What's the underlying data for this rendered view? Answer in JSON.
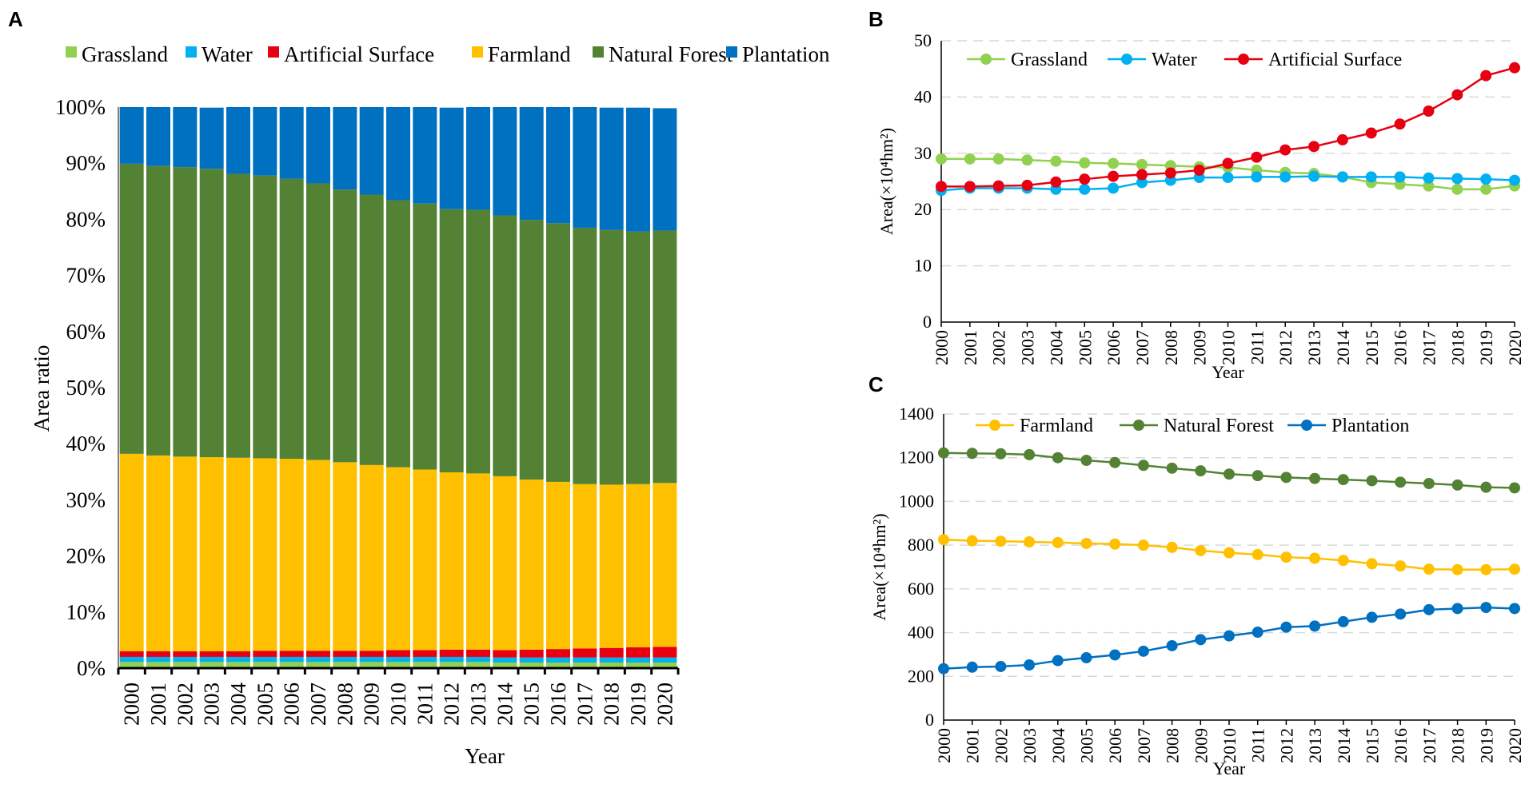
{
  "panels": {
    "a": "A",
    "b": "B",
    "c": "C"
  },
  "colors": {
    "Grassland": "#92D050",
    "Water": "#00B0F0",
    "Artificial Surface": "#E60012",
    "Farmland": "#FFC000",
    "Natural Forest": "#548235",
    "Plantation": "#0070C0",
    "grid": "#d9d9d9",
    "axis": "#000000"
  },
  "chart_data": [
    {
      "id": "A",
      "type": "bar",
      "stacked": true,
      "title": "",
      "xlabel": "Year",
      "ylabel": "Area ratio",
      "ylim": [
        0,
        100
      ],
      "yticks": [
        "0%",
        "10%",
        "20%",
        "30%",
        "40%",
        "50%",
        "60%",
        "70%",
        "80%",
        "90%",
        "100%"
      ],
      "categories": [
        "2000",
        "2001",
        "2002",
        "2003",
        "2004",
        "2005",
        "2006",
        "2007",
        "2008",
        "2009",
        "2010",
        "2011",
        "2012",
        "2013",
        "2014",
        "2015",
        "2016",
        "2017",
        "2018",
        "2019",
        "2020"
      ],
      "legend": [
        "Grassland",
        "Water",
        "Artificial Surface",
        "Farmland",
        "Natural Forest",
        "Plantation"
      ],
      "legend_position": "top",
      "series": [
        {
          "name": "Grassland",
          "values": [
            1.1,
            1.1,
            1.1,
            1.1,
            1.1,
            1.1,
            1.1,
            1.1,
            1.1,
            1.1,
            1.1,
            1.1,
            1.1,
            1.1,
            1.0,
            1.0,
            1.0,
            1.0,
            1.0,
            1.0,
            1.0
          ]
        },
        {
          "name": "Water",
          "values": [
            0.9,
            0.9,
            0.9,
            0.9,
            0.9,
            0.9,
            0.9,
            0.9,
            0.9,
            0.9,
            0.9,
            0.9,
            0.9,
            0.9,
            0.9,
            0.9,
            0.9,
            0.9,
            0.9,
            0.9,
            0.9
          ]
        },
        {
          "name": "Artificial Surface",
          "values": [
            1.0,
            1.0,
            1.0,
            1.0,
            1.0,
            1.1,
            1.1,
            1.1,
            1.1,
            1.1,
            1.2,
            1.2,
            1.3,
            1.3,
            1.3,
            1.4,
            1.5,
            1.6,
            1.7,
            1.8,
            1.9
          ]
        },
        {
          "name": "Farmland",
          "values": [
            35.2,
            34.9,
            34.7,
            34.6,
            34.5,
            34.3,
            34.2,
            34.0,
            33.6,
            33.1,
            32.6,
            32.2,
            31.6,
            31.4,
            31.0,
            30.3,
            29.8,
            29.3,
            29.1,
            29.1,
            29.2
          ]
        },
        {
          "name": "Natural Forest",
          "values": [
            51.7,
            51.6,
            51.6,
            51.4,
            50.6,
            50.4,
            49.9,
            49.3,
            48.6,
            48.2,
            47.6,
            47.4,
            46.9,
            47.0,
            46.5,
            46.3,
            46.1,
            45.7,
            45.4,
            45.0,
            45.0
          ]
        },
        {
          "name": "Plantation",
          "values": [
            10.1,
            10.5,
            10.7,
            10.9,
            11.9,
            12.2,
            12.8,
            13.6,
            14.7,
            15.6,
            16.6,
            17.2,
            18.1,
            18.3,
            19.3,
            20.1,
            20.7,
            21.5,
            21.8,
            22.1,
            21.8
          ]
        }
      ]
    },
    {
      "id": "B",
      "type": "line",
      "title": "",
      "xlabel": "Year",
      "ylabel": "Area(×10⁴hm²)",
      "ylim": [
        0,
        50
      ],
      "yticks": [
        0,
        10,
        20,
        30,
        40,
        50
      ],
      "grid": true,
      "x": [
        "2000",
        "2001",
        "2002",
        "2003",
        "2004",
        "2005",
        "2006",
        "2007",
        "2008",
        "2009",
        "2010",
        "2011",
        "2012",
        "2013",
        "2014",
        "2015",
        "2016",
        "2017",
        "2018",
        "2019",
        "2020"
      ],
      "legend_position": "top",
      "series": [
        {
          "name": "Grassland",
          "values": [
            29.0,
            29.0,
            29.0,
            28.8,
            28.6,
            28.3,
            28.2,
            28.0,
            27.8,
            27.6,
            27.5,
            27.0,
            26.6,
            26.4,
            25.8,
            24.8,
            24.5,
            24.2,
            23.6,
            23.6,
            24.2
          ]
        },
        {
          "name": "Water",
          "values": [
            23.4,
            23.8,
            23.8,
            23.8,
            23.6,
            23.6,
            23.8,
            24.8,
            25.2,
            25.7,
            25.7,
            25.8,
            25.8,
            25.9,
            25.8,
            25.8,
            25.8,
            25.6,
            25.5,
            25.4,
            25.2
          ]
        },
        {
          "name": "Artificial Surface",
          "values": [
            24.1,
            24.1,
            24.2,
            24.3,
            24.9,
            25.4,
            25.9,
            26.2,
            26.5,
            27.0,
            28.2,
            29.3,
            30.6,
            31.2,
            32.4,
            33.6,
            35.2,
            37.5,
            40.4,
            43.8,
            45.2
          ]
        }
      ]
    },
    {
      "id": "C",
      "type": "line",
      "title": "",
      "xlabel": "Year",
      "ylabel": "Area(×10⁴hm²)",
      "ylim": [
        0,
        1400
      ],
      "yticks": [
        0,
        200,
        400,
        600,
        800,
        1000,
        1200,
        1400
      ],
      "grid": true,
      "x": [
        "2000",
        "2001",
        "2002",
        "2003",
        "2004",
        "2005",
        "2006",
        "2007",
        "2008",
        "2009",
        "2010",
        "2011",
        "2012",
        "2013",
        "2014",
        "2015",
        "2016",
        "2017",
        "2018",
        "2019",
        "2020"
      ],
      "legend_position": "top",
      "series": [
        {
          "name": "Farmland",
          "values": [
            825,
            820,
            818,
            815,
            812,
            808,
            805,
            800,
            790,
            775,
            765,
            757,
            745,
            740,
            730,
            715,
            705,
            690,
            688,
            688,
            690
          ]
        },
        {
          "name": "Natural Forest",
          "values": [
            1222,
            1220,
            1218,
            1214,
            1200,
            1188,
            1178,
            1165,
            1152,
            1140,
            1125,
            1118,
            1110,
            1105,
            1100,
            1095,
            1088,
            1082,
            1075,
            1065,
            1062
          ]
        },
        {
          "name": "Plantation",
          "values": [
            235,
            242,
            245,
            252,
            272,
            285,
            298,
            315,
            340,
            368,
            385,
            402,
            425,
            430,
            450,
            470,
            485,
            505,
            510,
            515,
            510
          ]
        }
      ]
    }
  ]
}
